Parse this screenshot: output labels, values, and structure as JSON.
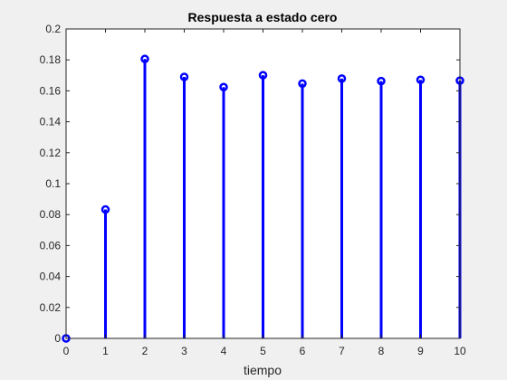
{
  "chart_data": {
    "type": "stem",
    "title": "Respuesta a estado cero",
    "xlabel": "tiempo",
    "ylabel": "",
    "x": [
      0,
      1,
      2,
      3,
      4,
      5,
      6,
      7,
      8,
      9,
      10
    ],
    "y": [
      0,
      0.0833,
      0.1806,
      0.169,
      0.1624,
      0.1701,
      0.1647,
      0.1679,
      0.1663,
      0.1671,
      0.1666
    ],
    "xlim": [
      0,
      10
    ],
    "ylim": [
      0,
      0.2
    ],
    "xticks": [
      "0",
      "1",
      "2",
      "3",
      "4",
      "5",
      "6",
      "7",
      "8",
      "9",
      "10"
    ],
    "yticks": [
      "0",
      "0.02",
      "0.04",
      "0.06",
      "0.08",
      "0.1",
      "0.12",
      "0.14",
      "0.16",
      "0.18",
      "0.2"
    ],
    "grid": false,
    "legend": false,
    "colors": {
      "series": "#0000ff",
      "axes": "#262626",
      "plot_bg": "#ffffff",
      "figure_bg": "#f0f0f0"
    }
  }
}
